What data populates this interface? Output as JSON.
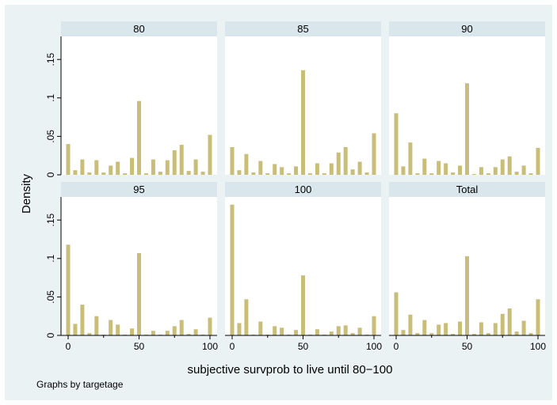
{
  "chart_data": {
    "type": "bar",
    "x_label": "subjective survprob to live until 80−100",
    "y_label": "Density",
    "note": "Graphs by targetage",
    "xlim": [
      0,
      100
    ],
    "ylim": [
      0,
      0.18
    ],
    "x_ticks": [
      "0",
      "50",
      "100"
    ],
    "x_ticks_minor": [
      25,
      75
    ],
    "y_ticks": [
      "0",
      ".05",
      ".1",
      ".15"
    ],
    "bar_color": "#c9bd7a",
    "panel_header_color": "#d9e6eb",
    "bin_centers": [
      0,
      5,
      10,
      15,
      20,
      25,
      30,
      35,
      40,
      45,
      50,
      55,
      60,
      65,
      70,
      75,
      80,
      85,
      90,
      95,
      100
    ],
    "panels": [
      {
        "title": "80",
        "values": [
          0.04,
          0.006,
          0.02,
          0.003,
          0.019,
          0.003,
          0.012,
          0.017,
          0.002,
          0.022,
          0.096,
          0.002,
          0.02,
          0.004,
          0.019,
          0.032,
          0.039,
          0.005,
          0.02,
          0.004,
          0.052
        ]
      },
      {
        "title": "85",
        "values": [
          0.036,
          0.006,
          0.027,
          0.003,
          0.018,
          0.002,
          0.014,
          0.01,
          0.002,
          0.011,
          0.136,
          0.002,
          0.015,
          0.002,
          0.015,
          0.029,
          0.036,
          0.007,
          0.017,
          0.003,
          0.054
        ]
      },
      {
        "title": "90",
        "values": [
          0.08,
          0.011,
          0.042,
          0.002,
          0.021,
          0.002,
          0.018,
          0.015,
          0.003,
          0.012,
          0.119,
          0.001,
          0.01,
          0.002,
          0.01,
          0.02,
          0.024,
          0.004,
          0.012,
          0.002,
          0.035
        ]
      },
      {
        "title": "95",
        "values": [
          0.118,
          0.015,
          0.04,
          0.003,
          0.025,
          0.001,
          0.02,
          0.014,
          0.001,
          0.009,
          0.107,
          0.001,
          0.006,
          0.001,
          0.006,
          0.012,
          0.02,
          0.002,
          0.008,
          0.001,
          0.023
        ]
      },
      {
        "title": "100",
        "values": [
          0.17,
          0.016,
          0.047,
          0.001,
          0.018,
          0.001,
          0.012,
          0.01,
          0.001,
          0.007,
          0.078,
          0.001,
          0.008,
          0.001,
          0.005,
          0.012,
          0.013,
          0.003,
          0.01,
          0.001,
          0.025
        ]
      },
      {
        "title": "Total",
        "values": [
          0.056,
          0.007,
          0.027,
          0.003,
          0.02,
          0.003,
          0.014,
          0.016,
          0.002,
          0.018,
          0.103,
          0.002,
          0.017,
          0.003,
          0.016,
          0.028,
          0.035,
          0.005,
          0.019,
          0.003,
          0.047
        ]
      }
    ]
  }
}
